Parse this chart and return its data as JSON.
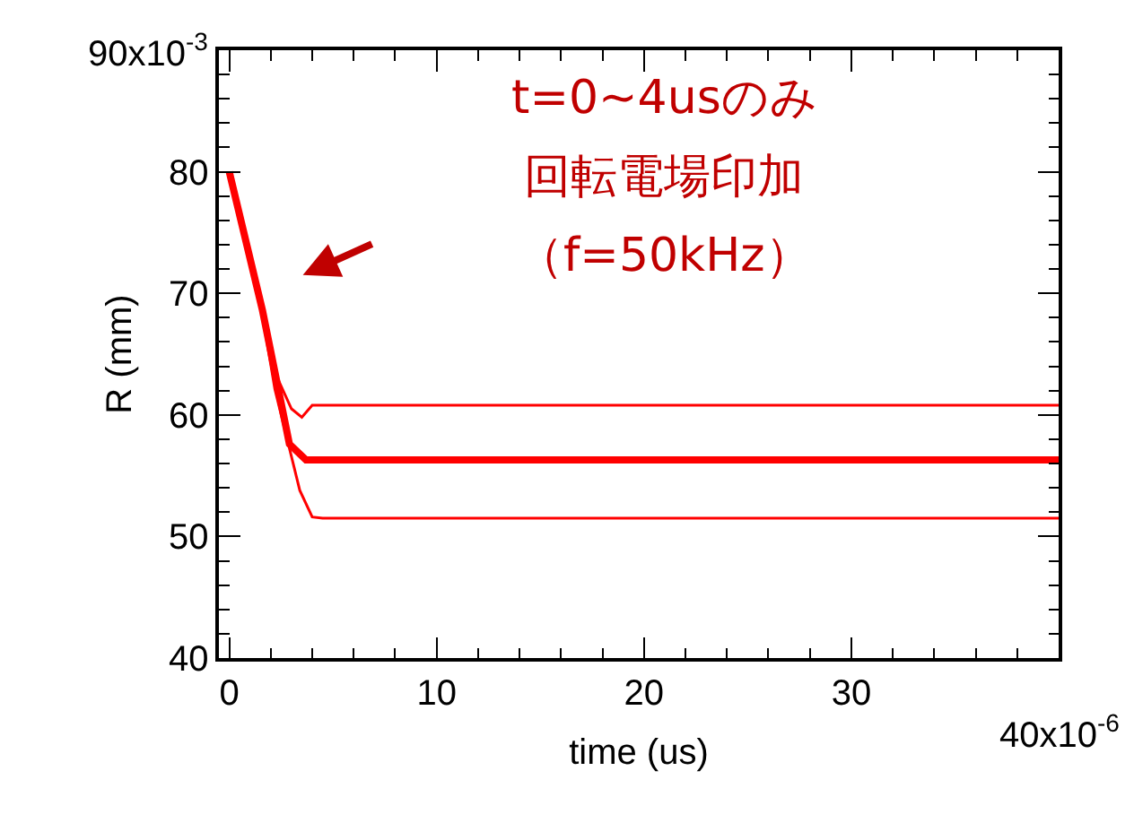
{
  "chart_data": {
    "type": "line",
    "xlabel": "time (us)",
    "ylabel": "R (mm)",
    "xlim": [
      -0.5,
      40
    ],
    "ylim": [
      40,
      90
    ],
    "xticks": [
      0,
      10,
      20,
      30
    ],
    "yticks": [
      40,
      50,
      60,
      70,
      80,
      {
        "value": 90,
        "label": null
      }
    ],
    "marker": "none",
    "line_style": "solid",
    "series": [
      {
        "color": "#ff0000",
        "x": [
          0,
          1.6,
          2.2,
          3.0,
          3.5,
          4.0,
          20,
          40
        ],
        "values": [
          80,
          69.0,
          63.5,
          60.5,
          59.8,
          60.8,
          60.8,
          60.8
        ]
      },
      {
        "color": "#ff0000",
        "x": [
          0,
          1.6,
          2.9,
          3.7,
          10,
          40
        ],
        "values": [
          80,
          68.6,
          57.6,
          56.3,
          56.3,
          56.3
        ]
      },
      {
        "color": "#ff0000",
        "x": [
          0,
          1.6,
          2.2,
          3.4,
          4.0,
          4.5,
          10,
          40
        ],
        "values": [
          80,
          68.2,
          62.1,
          53.8,
          51.6,
          51.5,
          51.5,
          51.5
        ]
      }
    ],
    "annotations": [
      "t=0~4usのみ",
      "回転電場印加",
      "（f=50kHz）",
      "90x10$^{-3}$",
      "40x10$^{-6}$"
    ]
  }
}
